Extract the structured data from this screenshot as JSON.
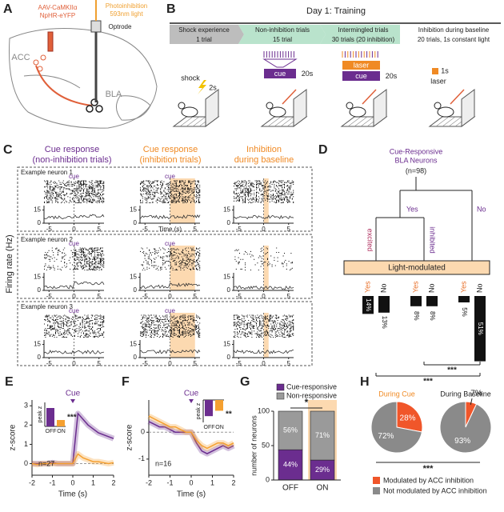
{
  "panels": {
    "A": {
      "letter": "A",
      "virus": [
        "AAV-CaMKIIα",
        "NpHR-eYFP"
      ],
      "light": [
        "Photoinhibition",
        "593nm light"
      ],
      "optrode": "Optrode",
      "acc": "ACC",
      "bla": "BLA"
    },
    "B": {
      "letter": "B",
      "title": "Day 1:  Training",
      "phases": [
        {
          "name": "Shock experience",
          "detail": "1 trial"
        },
        {
          "name": "Non-inhibition trials",
          "detail": "15 trial"
        },
        {
          "name": "Intermingled trials",
          "detail": "30 trials (20 inhibition)"
        },
        {
          "name": "Inhibition during baseline",
          "detail": "20 trials, 1s constant light"
        }
      ],
      "shock": "shock",
      "shock_time": "2s",
      "cue": "cue",
      "cue_time": "20s",
      "laser": "laser",
      "laser_time": "1s"
    },
    "C": {
      "letter": "C",
      "columns": [
        [
          "Cue response",
          "(non-inhibition trials)"
        ],
        [
          "Cue response",
          "(inhibition trials)"
        ],
        [
          "Inhibition",
          "during baseline"
        ]
      ],
      "neurons": [
        "Example neuron 1",
        "Example neuron 2",
        "Example neuron 3"
      ],
      "ylabel": "Firing rate (Hz)",
      "xlabel": "Time (s)",
      "cue": "cue",
      "xlim": [
        -6,
        6
      ],
      "xticks": [
        -5,
        0,
        5
      ],
      "ylim": [
        0,
        20
      ],
      "yticks": [
        0,
        15
      ]
    }
  },
  "chart_data": [
    {
      "type": "tree_bar",
      "letter": "D",
      "title": [
        "Cue-Responsive",
        "BLA Neurons"
      ],
      "n": "(n=98)",
      "branches": {
        "yes": "Yes",
        "no": "No",
        "excited": "excited",
        "inhibited": "inhibited",
        "light": "Light-modulated"
      },
      "categories": [
        "Yes",
        "No",
        "Yes",
        "No",
        "Yes",
        "No"
      ],
      "label_colors": [
        "#e8702a",
        "#111111",
        "#e8702a",
        "#111111",
        "#e8702a",
        "#111111"
      ],
      "values": [
        14,
        13,
        8,
        8,
        5,
        51
      ],
      "value_labels": [
        "14%",
        "13%",
        "8%",
        "8%",
        "5%",
        "51%"
      ],
      "color": "#111111",
      "significance": [
        "***",
        "***"
      ]
    },
    {
      "type": "line",
      "letter": "E",
      "title": "Cue",
      "x": [
        -2,
        -1.75,
        -1.5,
        -1.25,
        -1,
        -0.75,
        -0.5,
        -0.25,
        0,
        0.25,
        0.5,
        0.75,
        1,
        1.25,
        1.5,
        1.75,
        2
      ],
      "series": [
        {
          "color": "#6b2d8f",
          "values": [
            0,
            0,
            0,
            0,
            0.05,
            0,
            0,
            0,
            0,
            2.6,
            2.3,
            2.0,
            1.8,
            1.6,
            1.5,
            1.4,
            1.3
          ]
        },
        {
          "color": "#f5a030",
          "values": [
            0,
            -0.05,
            0,
            0,
            0,
            0,
            0,
            0,
            0,
            0.5,
            0.3,
            0.2,
            0.1,
            0.1,
            0.05,
            0,
            0.05
          ]
        }
      ],
      "xlim": [
        -2,
        2
      ],
      "xticks": [
        -2,
        -1,
        0,
        1,
        2
      ],
      "ylim": [
        -0.6,
        3.3
      ],
      "yticks": [
        0,
        1,
        2,
        3
      ],
      "xlabel": "Time (s)",
      "ylabel": "z-score",
      "n": "n=27",
      "inset": {
        "ylabel": "peak z",
        "categories": [
          "OFF",
          "ON"
        ],
        "values": [
          2.3,
          0.8
        ],
        "ylim": [
          0,
          3
        ],
        "significance": "***"
      }
    },
    {
      "type": "line",
      "letter": "F",
      "title": "Cue",
      "x": [
        -2,
        -1.75,
        -1.5,
        -1.25,
        -1,
        -0.75,
        -0.5,
        -0.25,
        0,
        0.25,
        0.5,
        0.75,
        1,
        1.25,
        1.5,
        1.75,
        2
      ],
      "series": [
        {
          "color": "#6b2d8f",
          "values": [
            0.4,
            0.3,
            0.2,
            0.2,
            0.1,
            0,
            0,
            0,
            0,
            -0.4,
            -0.7,
            -0.8,
            -0.7,
            -0.6,
            -0.5,
            -0.6,
            -0.5
          ]
        },
        {
          "color": "#f5a030",
          "values": [
            0.6,
            0.5,
            0.4,
            0.3,
            0.2,
            0.2,
            0.1,
            0,
            0,
            -0.3,
            -0.5,
            -0.6,
            -0.5,
            -0.4,
            -0.4,
            -0.5,
            -0.4
          ]
        }
      ],
      "xlim": [
        -2,
        2
      ],
      "xticks": [
        -2,
        -1,
        0,
        1,
        2
      ],
      "ylim": [
        -1.6,
        1.2
      ],
      "yticks": [
        -1,
        0
      ],
      "xlabel": "Time (s)",
      "ylabel": "z-score",
      "n": "n=16",
      "inset": {
        "ylabel": "peak z",
        "categories": [
          "OFF",
          "ON"
        ],
        "values": [
          -1.8,
          -1.2
        ],
        "ylim": [
          -2.5,
          0
        ],
        "significance": "**"
      }
    },
    {
      "type": "stacked_bar",
      "letter": "G",
      "categories": [
        "OFF",
        "ON"
      ],
      "series": [
        {
          "name": "Cue-responsive",
          "color": "#6b2d8f",
          "values": [
            44,
            29
          ],
          "value_labels": [
            "44%",
            "29%"
          ]
        },
        {
          "name": "Non-responsive",
          "color": "#9a9a9a",
          "values": [
            56,
            71
          ],
          "value_labels": [
            "56%",
            "71%"
          ]
        }
      ],
      "ylim": [
        0,
        100
      ],
      "yticks": [
        0,
        50,
        100
      ],
      "ylabel": "number of neurons",
      "significance": "*",
      "highlight_color": "#fcd9b0"
    },
    {
      "type": "pie",
      "letter": "H",
      "categories": [
        "Modulated by ACC inhibition",
        "Not modulated by ACC inhibition"
      ],
      "colors": [
        "#f0562a",
        "#8a8a8a"
      ],
      "pies": [
        {
          "title": "During Cue",
          "values": [
            28,
            72
          ],
          "value_labels": [
            "28%",
            "72%"
          ]
        },
        {
          "title": "During Baseline",
          "values": [
            7,
            93
          ],
          "value_labels": [
            "7%",
            "93%"
          ]
        }
      ],
      "significance": "***"
    }
  ]
}
